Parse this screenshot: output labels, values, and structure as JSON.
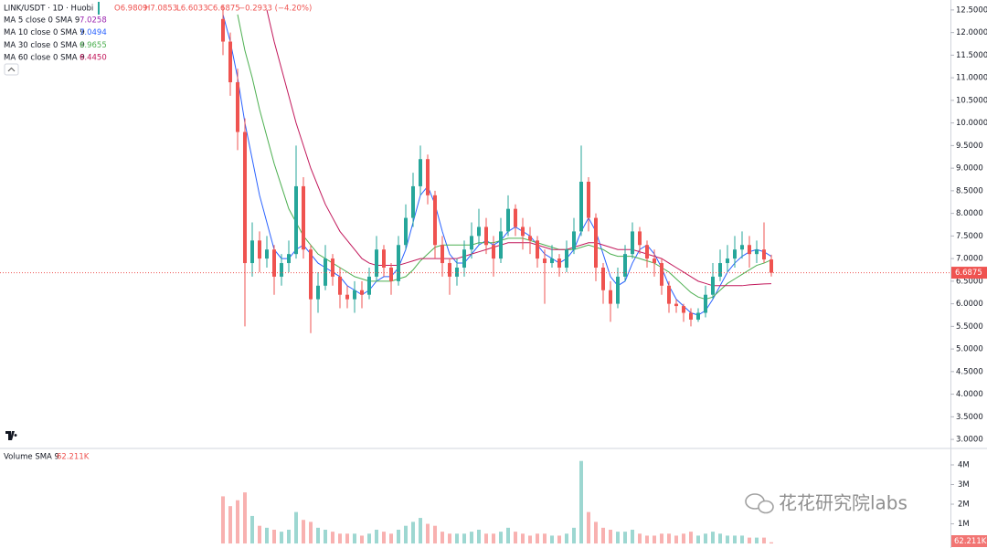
{
  "chart_data": [
    {
      "type": "candlestick",
      "title": "LINK/USDT · 1D · Huobi",
      "header": [
        "O6.9809",
        "H7.0853",
        "L6.6033",
        "C6.6875",
        "−0.2933 (−4.20%)"
      ],
      "open": [
        12.3,
        11.8,
        10.9,
        9.8,
        6.9,
        7.4,
        7.0,
        7.2,
        6.6,
        6.9,
        7.1,
        8.6,
        7.2,
        6.1,
        6.4,
        7.0,
        6.6,
        6.2,
        6.1,
        6.3,
        6.2,
        6.6,
        7.2,
        6.8,
        6.5,
        7.3,
        7.9,
        8.6,
        9.2,
        8.4,
        7.3,
        6.9,
        6.6,
        6.8,
        7.2,
        7.5,
        7.7,
        7.3,
        7.0,
        7.6,
        8.1,
        7.7,
        7.5,
        7.4,
        7.0,
        6.9,
        7.0,
        6.8,
        7.2,
        7.6,
        8.7,
        7.9,
        6.8,
        6.3,
        6.0,
        6.6,
        7.1,
        7.6,
        7.3,
        7.0,
        6.9,
        6.4,
        6.0,
        5.95,
        5.8,
        5.65,
        5.8,
        6.2,
        6.6,
        6.9,
        7.0,
        7.2,
        7.3,
        7.1,
        7.2,
        6.9809
      ],
      "high": [
        12.6,
        12.0,
        11.2,
        10.1,
        7.8,
        7.6,
        7.5,
        7.3,
        7.1,
        7.4,
        9.5,
        8.8,
        7.3,
        6.7,
        7.3,
        7.1,
        6.8,
        6.4,
        6.5,
        6.5,
        6.8,
        7.5,
        7.3,
        6.9,
        7.5,
        8.2,
        8.9,
        9.5,
        9.3,
        8.5,
        7.5,
        7.0,
        7.0,
        7.4,
        7.8,
        8.1,
        7.9,
        7.5,
        7.9,
        8.4,
        8.2,
        7.9,
        7.7,
        7.5,
        7.2,
        7.3,
        7.1,
        7.4,
        7.9,
        9.5,
        8.8,
        8.0,
        6.9,
        6.5,
        6.8,
        7.3,
        7.8,
        7.7,
        7.4,
        7.2,
        7.0,
        6.5,
        6.1,
        6.0,
        5.9,
        5.9,
        6.4,
        6.9,
        7.2,
        7.3,
        7.5,
        7.6,
        7.5,
        7.4,
        7.8,
        7.0853
      ],
      "low": [
        11.5,
        10.6,
        9.4,
        5.5,
        6.6,
        6.7,
        6.8,
        6.2,
        6.4,
        6.7,
        7.0,
        7.0,
        5.35,
        5.8,
        6.3,
        6.4,
        5.9,
        5.9,
        5.8,
        5.9,
        6.1,
        6.5,
        6.6,
        6.2,
        6.4,
        7.2,
        7.7,
        8.4,
        8.2,
        7.0,
        6.6,
        6.2,
        6.4,
        6.6,
        7.0,
        7.3,
        7.1,
        6.6,
        6.9,
        7.5,
        7.5,
        7.2,
        7.1,
        6.8,
        6.0,
        6.8,
        6.6,
        6.7,
        7.1,
        7.5,
        7.6,
        6.5,
        6.0,
        5.6,
        5.9,
        6.5,
        7.0,
        7.1,
        6.8,
        6.6,
        6.2,
        5.8,
        5.8,
        5.6,
        5.5,
        5.6,
        5.7,
        6.1,
        6.5,
        6.7,
        6.8,
        7.0,
        6.8,
        6.9,
        6.9,
        6.6033
      ],
      "close": [
        11.8,
        10.9,
        9.8,
        6.9,
        7.4,
        7.0,
        7.2,
        6.6,
        6.9,
        7.1,
        8.6,
        7.2,
        6.1,
        6.4,
        7.0,
        6.6,
        6.2,
        6.1,
        6.3,
        6.2,
        6.6,
        7.2,
        6.8,
        6.5,
        7.3,
        7.9,
        8.6,
        9.2,
        8.4,
        7.3,
        6.9,
        6.6,
        6.8,
        7.2,
        7.5,
        7.7,
        7.3,
        7.0,
        7.6,
        8.1,
        7.7,
        7.5,
        7.4,
        7.0,
        6.9,
        7.0,
        6.8,
        7.2,
        7.6,
        8.7,
        7.9,
        6.8,
        6.3,
        6.0,
        6.6,
        7.1,
        7.6,
        7.3,
        7.0,
        6.9,
        6.4,
        6.0,
        5.95,
        5.8,
        5.65,
        5.8,
        6.2,
        6.6,
        6.9,
        7.0,
        7.2,
        7.3,
        7.1,
        7.2,
        6.9809,
        6.6875
      ],
      "up_color": "#26a69a",
      "down_color": "#ef5350",
      "series": [
        {
          "name": "MA 5 close 0 SMA 9",
          "legend_value": "7.0258",
          "color": "#9c27b0"
        },
        {
          "name": "MA 10 close 0 SMA 9",
          "legend_value": "7.0494",
          "color": "#2962ff",
          "values": [
            12.4,
            11.8,
            11.0,
            10.0,
            9.2,
            8.4,
            7.8,
            7.2,
            7.0,
            7.0,
            7.2,
            7.3,
            7.1,
            6.9,
            6.8,
            6.7,
            6.6,
            6.4,
            6.3,
            6.2,
            6.3,
            6.5,
            6.6,
            6.6,
            6.8,
            7.2,
            7.8,
            8.4,
            8.6,
            8.2,
            7.6,
            7.1,
            6.9,
            6.9,
            7.1,
            7.3,
            7.4,
            7.3,
            7.4,
            7.6,
            7.7,
            7.6,
            7.5,
            7.3,
            7.1,
            7.0,
            6.9,
            7.0,
            7.2,
            7.6,
            7.9,
            7.6,
            7.1,
            6.6,
            6.4,
            6.5,
            6.9,
            7.2,
            7.3,
            7.1,
            6.8,
            6.4,
            6.1,
            5.95,
            5.8,
            5.75,
            5.85,
            6.1,
            6.4,
            6.7,
            6.9,
            7.05,
            7.15,
            7.2,
            7.15,
            7.05
          ]
        },
        {
          "name": "MA 30 close 0 SMA 9",
          "legend_value": "6.9655",
          "color": "#4caf50",
          "values": [
            null,
            null,
            12.4,
            11.6,
            11.0,
            10.3,
            9.7,
            9.1,
            8.6,
            8.1,
            7.8,
            7.5,
            7.3,
            7.1,
            7.0,
            6.9,
            6.8,
            6.7,
            6.6,
            6.55,
            6.5,
            6.5,
            6.5,
            6.5,
            6.55,
            6.6,
            6.75,
            6.95,
            7.1,
            7.25,
            7.3,
            7.3,
            7.3,
            7.3,
            7.3,
            7.35,
            7.35,
            7.35,
            7.4,
            7.45,
            7.45,
            7.45,
            7.4,
            7.35,
            7.3,
            7.25,
            7.2,
            7.2,
            7.2,
            7.25,
            7.3,
            7.25,
            7.2,
            7.1,
            7.05,
            7.05,
            7.05,
            7.0,
            6.95,
            6.9,
            6.8,
            6.7,
            6.55,
            6.4,
            6.25,
            6.15,
            6.1,
            6.15,
            6.3,
            6.45,
            6.55,
            6.65,
            6.75,
            6.85,
            6.9,
            6.97
          ]
        },
        {
          "name": "MA 60 close 0 SMA 9",
          "legend_value": "6.4450",
          "color": "#c2185b",
          "values": [
            null,
            null,
            null,
            null,
            null,
            null,
            12.5,
            11.8,
            11.2,
            10.6,
            10.0,
            9.5,
            9.0,
            8.6,
            8.2,
            7.9,
            7.6,
            7.4,
            7.2,
            7.0,
            6.9,
            6.85,
            6.85,
            6.85,
            6.85,
            6.9,
            6.95,
            7.0,
            7.0,
            7.0,
            7.0,
            7.0,
            7.0,
            7.05,
            7.1,
            7.15,
            7.2,
            7.25,
            7.3,
            7.35,
            7.35,
            7.35,
            7.35,
            7.3,
            7.25,
            7.2,
            7.2,
            7.2,
            7.25,
            7.3,
            7.35,
            7.35,
            7.3,
            7.25,
            7.2,
            7.2,
            7.2,
            7.15,
            7.1,
            7.05,
            7.0,
            6.9,
            6.8,
            6.7,
            6.6,
            6.5,
            6.45,
            6.4,
            6.4,
            6.4,
            6.4,
            6.4,
            6.42,
            6.43,
            6.44,
            6.445
          ]
        }
      ],
      "last_price": 6.6875,
      "ylim": [
        2.82,
        12.72
      ],
      "yticks": [
        {
          "value": 3,
          "label": "3.0000"
        },
        {
          "value": 3.5,
          "label": "3.5000"
        },
        {
          "value": 4,
          "label": "4.0000"
        },
        {
          "value": 4.5,
          "label": "4.5000"
        },
        {
          "value": 5,
          "label": "5.0000"
        },
        {
          "value": 5.5,
          "label": "5.5000"
        },
        {
          "value": 6,
          "label": "6.0000"
        },
        {
          "value": 6.5,
          "label": "6.5000"
        },
        {
          "value": 7,
          "label": "7.0000"
        },
        {
          "value": 7.5,
          "label": "7.5000"
        },
        {
          "value": 8,
          "label": "8.0000"
        },
        {
          "value": 8.5,
          "label": "8.5000"
        },
        {
          "value": 9,
          "label": "9.0000"
        },
        {
          "value": 9.5,
          "label": "9.5000"
        },
        {
          "value": 10,
          "label": "10.0000"
        },
        {
          "value": 10.5,
          "label": "10.5000"
        },
        {
          "value": 11,
          "label": "11.0000"
        },
        {
          "value": 11.5,
          "label": "11.5000"
        },
        {
          "value": 12,
          "label": "12.0000"
        },
        {
          "value": 12.5,
          "label": "12.5000"
        }
      ],
      "grid": false,
      "watermark": "花花研究院labs"
    },
    {
      "type": "bar",
      "title": "Volume SMA 9",
      "current_label": "62.211K",
      "values": [
        2.4,
        1.9,
        2.2,
        2.6,
        1.4,
        0.9,
        0.8,
        0.7,
        0.6,
        0.7,
        1.6,
        1.2,
        1.1,
        0.8,
        0.7,
        0.6,
        0.5,
        0.5,
        0.5,
        0.4,
        0.5,
        0.7,
        0.6,
        0.5,
        0.7,
        0.9,
        1.1,
        1.3,
        1.0,
        0.9,
        0.6,
        0.5,
        0.5,
        0.5,
        0.6,
        0.7,
        0.5,
        0.5,
        0.6,
        0.8,
        0.6,
        0.5,
        0.4,
        0.5,
        0.5,
        0.4,
        0.4,
        0.5,
        0.8,
        4.2,
        1.6,
        1.1,
        0.8,
        0.7,
        0.6,
        0.6,
        0.7,
        0.5,
        0.4,
        0.4,
        0.5,
        0.5,
        0.4,
        0.5,
        0.6,
        0.4,
        0.5,
        0.6,
        0.5,
        0.4,
        0.4,
        0.4,
        0.3,
        0.3,
        0.3,
        0.062211
      ],
      "ylim": [
        -0.23,
        4.79
      ],
      "yticks": [
        {
          "value": 1,
          "label": "1M"
        },
        {
          "value": 2,
          "label": "2M"
        },
        {
          "value": 3,
          "label": "3M"
        },
        {
          "value": 4,
          "label": "4M"
        }
      ],
      "grid": false
    }
  ]
}
